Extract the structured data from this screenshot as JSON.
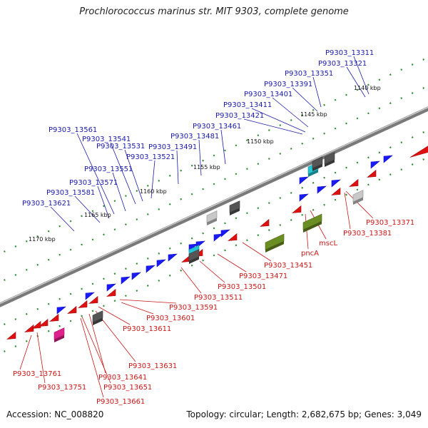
{
  "title": "Prochlorococcus marinus str. MIT 9303, complete genome",
  "footer": {
    "accession": "Accession: NC_008820",
    "summary": "Topology: circular; Length: 2,682,675 bp; Genes: 3,049"
  },
  "colors": {
    "forward_gene": "#1a1aff",
    "reverse_gene": "#e01010",
    "rna_gene": "#6b8e23",
    "tRNA": "#22c4d4",
    "pseudogene": "#c8c8c8",
    "other_gene": "#555555",
    "misc_feature": "#e0208c",
    "leader_blue": "#1a1aa8",
    "leader_red": "#c81818",
    "track_dots": "#2e8b2e"
  },
  "scale_ticks": [
    "1140 kbp",
    "1145 kbp",
    "1150 kbp",
    "1155 kbp",
    "1160 kbp",
    "1165 kbp",
    "1170 kbp"
  ],
  "gene_labels_top": [
    "P9303_13311",
    "P9303_13321",
    "P9303_13351",
    "P9303_13391",
    "P9303_13401",
    "P9303_13411",
    "P9303_13421",
    "P9303_13461",
    "P9303_13481",
    "P9303_13491",
    "P9303_13521",
    "P9303_13531",
    "P9303_13541",
    "P9303_13551",
    "P9303_13561",
    "P9303_13571",
    "P9303_13581",
    "P9303_13621"
  ],
  "gene_labels_bottom": [
    "P9303_13371",
    "P9303_13381",
    "mscL",
    "pncA",
    "P9303_13451",
    "P9303_13471",
    "P9303_13501",
    "P9303_13511",
    "P9303_13591",
    "P9303_13601",
    "P9303_13611",
    "P9303_13631",
    "P9303_13641",
    "P9303_13651",
    "P9303_13661",
    "P9303_13751",
    "P9303_13761"
  ]
}
